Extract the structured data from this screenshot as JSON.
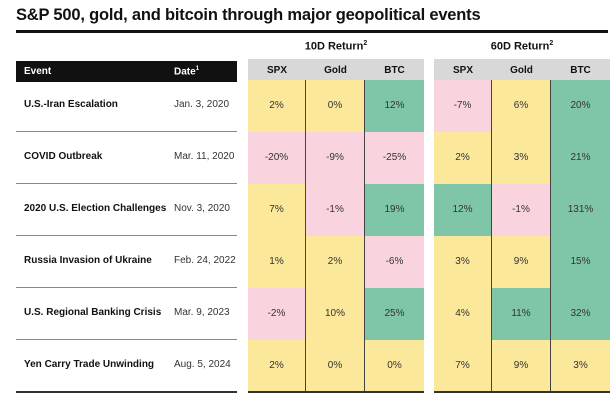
{
  "chart_data": {
    "type": "table",
    "title": "S&P 500, gold, and bitcoin through major geopolitical events",
    "headers": {
      "event": "Event",
      "date": "Date",
      "date_note": "1",
      "group_10d": "10D Return",
      "group_60d": "60D Return",
      "group_note": "2",
      "assets": [
        "SPX",
        "Gold",
        "BTC"
      ]
    },
    "rows": [
      {
        "event": "U.S.-Iran Escalation",
        "date": "Jan. 3, 2020",
        "r10": [
          "2%",
          "0%",
          "12%"
        ],
        "c10": [
          "neu",
          "neu",
          "pos"
        ],
        "r60": [
          "-7%",
          "6%",
          "20%"
        ],
        "c60": [
          "neg",
          "neu",
          "pos"
        ]
      },
      {
        "event": "COVID Outbreak",
        "date": "Mar. 11, 2020",
        "r10": [
          "-20%",
          "-9%",
          "-25%"
        ],
        "c10": [
          "neg",
          "neg",
          "neg"
        ],
        "r60": [
          "2%",
          "3%",
          "21%"
        ],
        "c60": [
          "neu",
          "neu",
          "pos"
        ]
      },
      {
        "event": "2020 U.S. Election Challenges",
        "date": "Nov. 3, 2020",
        "r10": [
          "7%",
          "-1%",
          "19%"
        ],
        "c10": [
          "neu",
          "neg",
          "pos"
        ],
        "r60": [
          "12%",
          "-1%",
          "131%"
        ],
        "c60": [
          "pos",
          "neg",
          "pos"
        ]
      },
      {
        "event": "Russia Invasion of Ukraine",
        "date": "Feb. 24, 2022",
        "r10": [
          "1%",
          "2%",
          "-6%"
        ],
        "c10": [
          "neu",
          "neu",
          "neg"
        ],
        "r60": [
          "3%",
          "9%",
          "15%"
        ],
        "c60": [
          "neu",
          "neu",
          "pos"
        ]
      },
      {
        "event": "U.S. Regional Banking Crisis",
        "date": "Mar. 9, 2023",
        "r10": [
          "-2%",
          "10%",
          "25%"
        ],
        "c10": [
          "neg",
          "neu",
          "pos"
        ],
        "r60": [
          "4%",
          "11%",
          "32%"
        ],
        "c60": [
          "neu",
          "pos",
          "pos"
        ]
      },
      {
        "event": "Yen Carry Trade Unwinding",
        "date": "Aug. 5, 2024",
        "r10": [
          "2%",
          "0%",
          "0%"
        ],
        "c10": [
          "neu",
          "neu",
          "neu"
        ],
        "r60": [
          "7%",
          "9%",
          "3%"
        ],
        "c60": [
          "neu",
          "neu",
          "neu"
        ]
      }
    ],
    "colors": {
      "pos": "#7fc6a9",
      "neu": "#fbe89b",
      "neg": "#f9d4de"
    }
  }
}
